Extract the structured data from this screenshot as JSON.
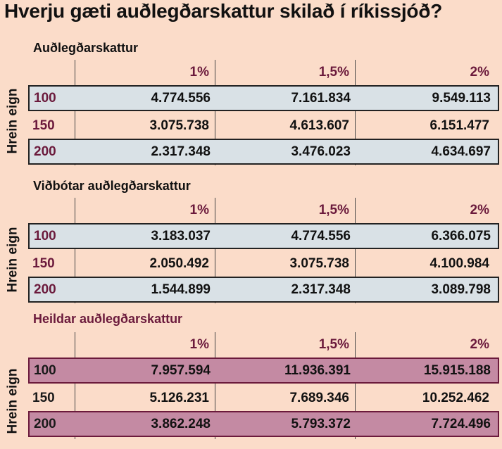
{
  "title": "Hverju gæti auðlegðarskattur skilað í ríkissjóð?",
  "row_axis_label": "Hrein eign",
  "columns": [
    "1%",
    "1,5%",
    "2%"
  ],
  "colors": {
    "background": "#fbdcc9",
    "blue_row": "#d9e1e6",
    "mauve_row": "#c48aa3",
    "accent": "#6b1a3c"
  },
  "tables": [
    {
      "title": "Auðlegðarskattur",
      "rows": [
        {
          "key": "100",
          "values": [
            "4.774.556",
            "7.161.834",
            "9.549.113"
          ]
        },
        {
          "key": "150",
          "values": [
            "3.075.738",
            "4.613.607",
            "6.151.477"
          ]
        },
        {
          "key": "200",
          "values": [
            "2.317.348",
            "3.476.023",
            "4.634.697"
          ]
        }
      ]
    },
    {
      "title": "Viðbótar auðlegðarskattur",
      "rows": [
        {
          "key": "100",
          "values": [
            "3.183.037",
            "4.774.556",
            "6.366.075"
          ]
        },
        {
          "key": "150",
          "values": [
            "2.050.492",
            "3.075.738",
            "4.100.984"
          ]
        },
        {
          "key": "200",
          "values": [
            "1.544.899",
            "2.317.348",
            "3.089.798"
          ]
        }
      ]
    },
    {
      "title": "Heildar auðlegðarskattur",
      "rows": [
        {
          "key": "100",
          "values": [
            "7.957.594",
            "11.936.391",
            "15.915.188"
          ]
        },
        {
          "key": "150",
          "values": [
            "5.126.231",
            "7.689.346",
            "10.252.462"
          ]
        },
        {
          "key": "200",
          "values": [
            "3.862.248",
            "5.793.372",
            "7.724.496"
          ]
        }
      ]
    }
  ]
}
